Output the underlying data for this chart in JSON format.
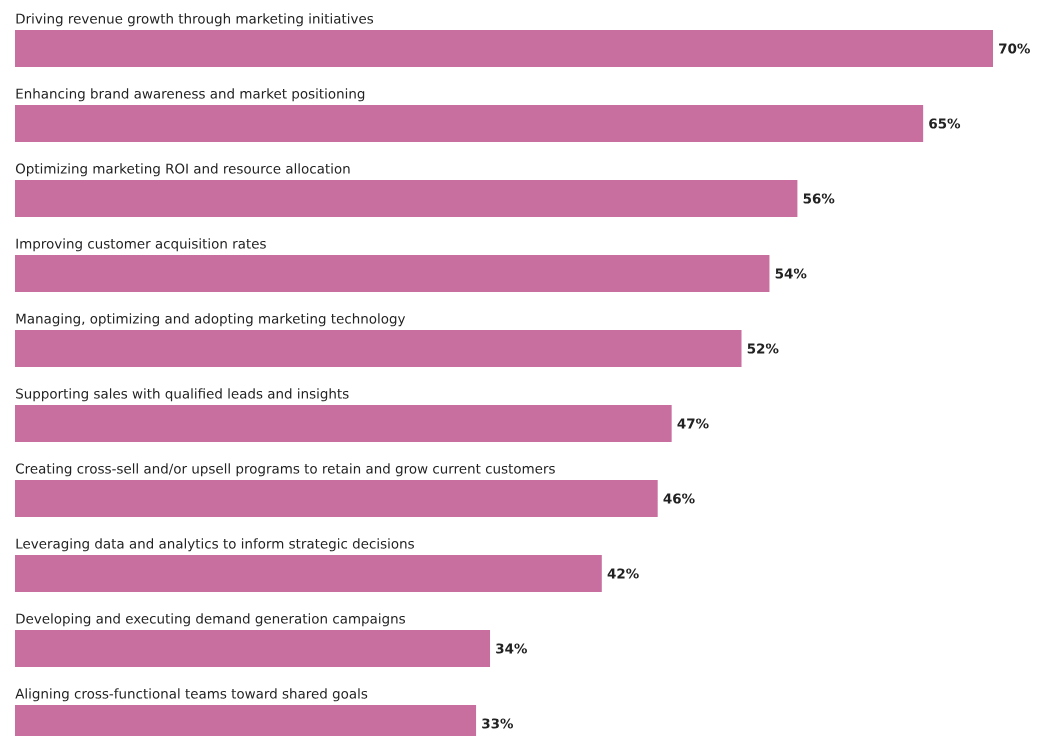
{
  "chart_data": {
    "type": "bar",
    "orientation": "horizontal",
    "categories": [
      "Driving revenue growth through marketing initiatives",
      "Enhancing brand awareness and market positioning",
      "Optimizing marketing ROI and resource allocation",
      "Improving customer acquisition rates",
      "Managing, optimizing and adopting marketing technology",
      "Supporting sales with qualified leads and insights",
      "Creating cross-sell and/or upsell programs to retain and grow current customers",
      "Leveraging data and analytics to inform strategic decisions",
      "Developing and executing demand generation campaigns",
      "Aligning cross-functional teams toward shared goals"
    ],
    "values": [
      70,
      65,
      56,
      54,
      52,
      47,
      46,
      42,
      34,
      33
    ],
    "value_labels": [
      "70%",
      "65%",
      "56%",
      "54%",
      "52%",
      "47%",
      "46%",
      "42%",
      "34%",
      "33%"
    ],
    "color": "#c96fa0"
  }
}
